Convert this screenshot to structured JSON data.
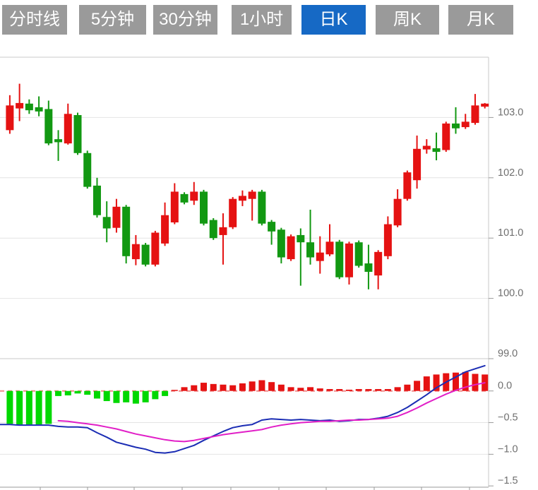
{
  "toolbar": {
    "tabs": [
      {
        "label": "分时线",
        "active": false
      },
      {
        "label": "5分钟",
        "active": false
      },
      {
        "label": "30分钟",
        "active": false
      },
      {
        "label": "1小时",
        "active": false
      },
      {
        "label": "日K",
        "active": true
      },
      {
        "label": "周K",
        "active": false
      },
      {
        "label": "月K",
        "active": false
      }
    ],
    "inactive_bg": "#9a9a9a",
    "active_bg": "#1669c5",
    "text_color": "#ffffff"
  },
  "colors": {
    "background": "#ffffff",
    "candle_up": "#e51212",
    "candle_down": "#129812",
    "hist_up": "#e51212",
    "hist_down": "#00d800",
    "dif_line": "#1b2db4",
    "dea_line": "#e11fc7",
    "zero_line": "#ef8b8b",
    "grid": "#e4e4e4",
    "panel_border": "#c9c9c9",
    "axis": "#9a9a9a",
    "label": "#6f6f6f"
  },
  "chart_data": {
    "type": "candlestick_with_macd",
    "interval": "日K",
    "grid": true,
    "legend_position": "none",
    "price_axis": {
      "min": 99.0,
      "max": 104.0,
      "ticks": [
        {
          "label": "103.0",
          "value": 103.0
        },
        {
          "label": "102.0",
          "value": 102.0
        },
        {
          "label": "101.0",
          "value": 101.0
        },
        {
          "label": "100.0",
          "value": 100.0
        },
        {
          "label": "99.0",
          "value": 99.0
        }
      ],
      "gridline_values": [
        103.0,
        102.0,
        101.0,
        100.0
      ]
    },
    "macd_axis": {
      "min": -1.52,
      "max": 0.51,
      "ticks": [
        {
          "label": "0.0",
          "value": 0.0
        },
        {
          "label": "−0.5",
          "value": -0.5
        },
        {
          "label": "−1.0",
          "value": -1.0
        },
        {
          "label": "−1.5",
          "value": -1.5
        }
      ],
      "gridline_values": [
        -0.5,
        -1.0
      ]
    },
    "candle_format": "[open, high, low, close] ; close>=open drawn red (up), close<open drawn green (down)",
    "candles": [
      [
        102.79,
        103.37,
        102.73,
        103.2
      ],
      [
        103.15,
        103.56,
        102.94,
        103.24
      ],
      [
        103.23,
        103.3,
        103.06,
        103.12
      ],
      [
        103.17,
        103.35,
        103.02,
        103.1
      ],
      [
        103.14,
        103.28,
        102.54,
        102.57
      ],
      [
        102.64,
        102.79,
        102.28,
        102.59
      ],
      [
        102.57,
        103.23,
        102.55,
        103.06
      ],
      [
        103.04,
        103.08,
        102.38,
        102.41
      ],
      [
        102.41,
        102.45,
        101.82,
        101.85
      ],
      [
        101.87,
        102.0,
        101.34,
        101.38
      ],
      [
        101.35,
        101.61,
        100.93,
        101.16
      ],
      [
        101.17,
        101.65,
        101.09,
        101.52
      ],
      [
        101.52,
        101.55,
        100.58,
        100.7
      ],
      [
        100.65,
        101.05,
        100.55,
        100.9
      ],
      [
        100.89,
        100.92,
        100.53,
        100.56
      ],
      [
        100.56,
        101.12,
        100.53,
        101.09
      ],
      [
        100.91,
        101.59,
        100.87,
        101.38
      ],
      [
        101.26,
        101.91,
        101.23,
        101.77
      ],
      [
        101.73,
        101.76,
        101.56,
        101.59
      ],
      [
        101.62,
        101.93,
        101.55,
        101.77
      ],
      [
        101.77,
        101.8,
        101.21,
        101.24
      ],
      [
        101.3,
        101.33,
        100.97,
        101.0
      ],
      [
        101.05,
        101.41,
        100.56,
        101.18
      ],
      [
        101.18,
        101.68,
        101.15,
        101.65
      ],
      [
        101.62,
        101.79,
        101.53,
        101.7
      ],
      [
        101.65,
        101.8,
        101.29,
        101.77
      ],
      [
        101.77,
        101.8,
        101.21,
        101.24
      ],
      [
        101.27,
        101.3,
        100.89,
        101.11
      ],
      [
        101.14,
        101.17,
        100.58,
        100.68
      ],
      [
        100.65,
        101.06,
        100.62,
        101.03
      ],
      [
        101.05,
        101.16,
        100.21,
        100.93
      ],
      [
        100.93,
        101.47,
        100.56,
        100.68
      ],
      [
        100.62,
        101.03,
        100.41,
        100.76
      ],
      [
        100.73,
        101.23,
        100.7,
        100.94
      ],
      [
        100.94,
        100.97,
        100.32,
        100.35
      ],
      [
        100.35,
        100.94,
        100.23,
        100.91
      ],
      [
        100.93,
        100.96,
        100.51,
        100.54
      ],
      [
        100.58,
        100.89,
        100.15,
        100.44
      ],
      [
        100.38,
        100.8,
        100.15,
        100.77
      ],
      [
        100.7,
        101.36,
        100.65,
        101.23
      ],
      [
        101.21,
        101.81,
        101.18,
        101.65
      ],
      [
        101.65,
        102.12,
        101.62,
        102.09
      ],
      [
        101.96,
        102.7,
        101.82,
        102.48
      ],
      [
        102.47,
        102.64,
        102.4,
        102.53
      ],
      [
        102.49,
        102.75,
        102.29,
        102.43
      ],
      [
        102.46,
        102.93,
        102.43,
        102.9
      ],
      [
        102.9,
        103.17,
        102.73,
        102.82
      ],
      [
        102.84,
        103.06,
        102.81,
        102.93
      ],
      [
        102.91,
        103.39,
        102.88,
        103.2
      ],
      [
        103.18,
        103.24,
        103.15,
        103.23
      ]
    ],
    "macd": {
      "histogram": [
        -0.52,
        -0.53,
        -0.53,
        -0.53,
        -0.52,
        -0.08,
        -0.07,
        -0.04,
        -0.06,
        -0.12,
        -0.16,
        -0.19,
        -0.18,
        -0.2,
        -0.18,
        -0.13,
        -0.08,
        0.01,
        0.06,
        0.09,
        0.13,
        0.11,
        0.1,
        0.09,
        0.12,
        0.15,
        0.17,
        0.14,
        0.1,
        0.06,
        0.05,
        0.06,
        0.04,
        0.03,
        0.03,
        0.02,
        0.03,
        0.03,
        0.03,
        0.03,
        0.06,
        0.1,
        0.16,
        0.23,
        0.26,
        0.28,
        0.29,
        0.3,
        0.27,
        0.26
      ],
      "dif": [
        -0.53,
        -0.54,
        -0.54,
        -0.54,
        -0.54,
        -0.56,
        -0.57,
        -0.57,
        -0.58,
        -0.66,
        -0.73,
        -0.81,
        -0.85,
        -0.89,
        -0.92,
        -0.97,
        -0.98,
        -0.96,
        -0.91,
        -0.86,
        -0.78,
        -0.71,
        -0.64,
        -0.58,
        -0.55,
        -0.53,
        -0.46,
        -0.44,
        -0.45,
        -0.46,
        -0.45,
        -0.46,
        -0.47,
        -0.46,
        -0.48,
        -0.47,
        -0.45,
        -0.45,
        -0.43,
        -0.4,
        -0.34,
        -0.26,
        -0.16,
        -0.06,
        0.05,
        0.14,
        0.22,
        0.3,
        0.35,
        0.4
      ],
      "dea": [
        null,
        null,
        null,
        null,
        null,
        -0.47,
        -0.48,
        -0.5,
        -0.52,
        -0.54,
        -0.57,
        -0.6,
        -0.64,
        -0.68,
        -0.71,
        -0.74,
        -0.77,
        -0.79,
        -0.8,
        -0.78,
        -0.75,
        -0.72,
        -0.69,
        -0.67,
        -0.65,
        -0.63,
        -0.61,
        -0.57,
        -0.54,
        -0.52,
        -0.5,
        -0.49,
        -0.48,
        -0.48,
        -0.47,
        -0.46,
        -0.46,
        -0.45,
        -0.44,
        -0.43,
        -0.4,
        -0.34,
        -0.27,
        -0.19,
        -0.12,
        -0.05,
        0.01,
        0.06,
        0.1,
        0.13
      ]
    }
  }
}
